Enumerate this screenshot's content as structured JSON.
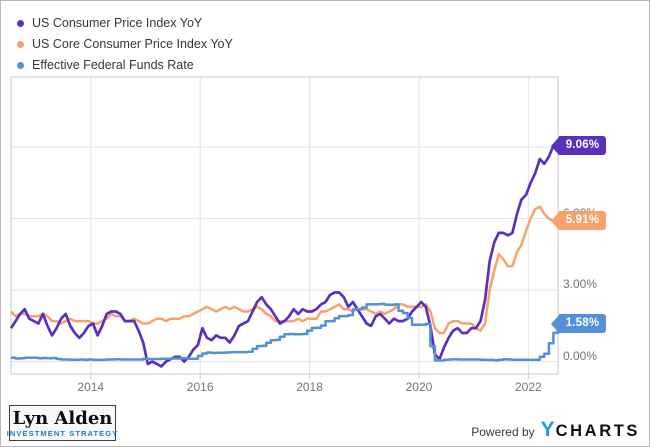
{
  "colors": {
    "cpi": "#5b30bd",
    "core": "#f7a16b",
    "effr": "#5490d8",
    "grid": "#e3e3e3",
    "axis_border": "#c9c9c9",
    "tick_text": "#757575",
    "legend_text": "#383838",
    "logo_accent": "#1b7ec6",
    "brand_accent": "#1e9be9"
  },
  "chart_data": {
    "type": "line",
    "x_unit": "monthly",
    "x_start": "2012-07",
    "x_end": "2022-07",
    "x_ticks": [
      2014,
      2016,
      2018,
      2020,
      2022
    ],
    "x_tick_labels": [
      "2014",
      "2016",
      "2018",
      "2020",
      "2022"
    ],
    "y_tick_labels": [
      "0.00%",
      "3.00%",
      "6.00%",
      "9.00%"
    ],
    "y_tick_values": [
      0,
      3,
      6,
      9
    ],
    "ylim": [
      -0.52,
      11.94
    ],
    "grid": true,
    "legend_position": "top-left",
    "series": [
      {
        "name": "US Consumer Price Index YoY",
        "color": "#5b30bd",
        "end_label": "9.06%",
        "end_value": 9.06,
        "step": false,
        "values": [
          1.4,
          1.7,
          2.0,
          2.2,
          1.8,
          1.7,
          1.6,
          2.0,
          1.5,
          1.1,
          1.4,
          1.8,
          2.0,
          1.5,
          1.2,
          1.0,
          1.2,
          1.5,
          1.6,
          1.1,
          1.5,
          2.0,
          2.1,
          2.1,
          2.0,
          1.7,
          1.7,
          1.7,
          1.3,
          0.8,
          -0.1,
          0.0,
          -0.1,
          -0.2,
          0.0,
          0.1,
          0.2,
          0.2,
          0.0,
          0.2,
          0.5,
          0.7,
          1.4,
          1.0,
          0.9,
          1.1,
          1.0,
          1.0,
          0.8,
          1.1,
          1.5,
          1.6,
          1.7,
          2.1,
          2.5,
          2.7,
          2.4,
          2.2,
          1.9,
          1.6,
          1.7,
          1.9,
          2.2,
          2.0,
          2.2,
          2.1,
          2.1,
          2.2,
          2.4,
          2.5,
          2.8,
          2.9,
          2.9,
          2.7,
          2.3,
          2.5,
          2.2,
          1.9,
          1.6,
          1.5,
          1.9,
          2.0,
          1.8,
          1.6,
          1.8,
          1.7,
          1.7,
          1.8,
          2.1,
          2.3,
          2.5,
          2.3,
          1.5,
          0.3,
          0.1,
          0.6,
          1.0,
          1.3,
          1.4,
          1.2,
          1.2,
          1.4,
          1.4,
          1.7,
          2.6,
          4.2,
          5.0,
          5.4,
          5.4,
          5.3,
          5.4,
          6.2,
          6.8,
          7.0,
          7.5,
          7.9,
          8.5,
          8.3,
          8.6,
          9.06
        ]
      },
      {
        "name": "US Core Consumer Price Index YoY",
        "color": "#f7a16b",
        "end_label": "5.91%",
        "end_value": 5.91,
        "step": false,
        "values": [
          2.1,
          1.9,
          2.0,
          2.0,
          1.9,
          1.9,
          1.9,
          2.0,
          1.9,
          1.7,
          1.7,
          1.6,
          1.7,
          1.8,
          1.7,
          1.7,
          1.7,
          1.7,
          1.6,
          1.6,
          1.7,
          1.8,
          2.0,
          1.9,
          1.9,
          1.7,
          1.7,
          1.8,
          1.7,
          1.6,
          1.6,
          1.7,
          1.8,
          1.8,
          1.7,
          1.8,
          1.8,
          1.8,
          1.9,
          1.9,
          2.0,
          2.1,
          2.2,
          2.3,
          2.2,
          2.1,
          2.2,
          2.3,
          2.2,
          2.3,
          2.2,
          2.1,
          2.1,
          2.2,
          2.3,
          2.2,
          2.0,
          1.9,
          1.7,
          1.7,
          1.7,
          1.7,
          1.7,
          1.8,
          1.7,
          1.8,
          1.8,
          1.8,
          2.1,
          2.1,
          2.2,
          2.3,
          2.4,
          2.2,
          2.2,
          2.1,
          2.2,
          2.2,
          2.2,
          2.1,
          2.0,
          2.1,
          2.0,
          2.1,
          2.2,
          2.4,
          2.4,
          2.3,
          2.3,
          2.3,
          2.3,
          2.4,
          2.1,
          1.4,
          1.2,
          1.2,
          1.6,
          1.7,
          1.7,
          1.6,
          1.6,
          1.6,
          1.4,
          1.3,
          1.6,
          3.0,
          3.8,
          4.5,
          4.3,
          4.0,
          4.0,
          4.6,
          4.9,
          5.5,
          6.0,
          6.4,
          6.5,
          6.2,
          6.0,
          5.91
        ]
      },
      {
        "name": "Effective Federal Funds Rate",
        "color": "#5490d8",
        "end_label": "1.58%",
        "end_value": 1.58,
        "step": true,
        "values": [
          0.16,
          0.13,
          0.14,
          0.16,
          0.16,
          0.16,
          0.14,
          0.15,
          0.14,
          0.15,
          0.11,
          0.09,
          0.09,
          0.08,
          0.08,
          0.09,
          0.08,
          0.09,
          0.07,
          0.07,
          0.08,
          0.09,
          0.09,
          0.1,
          0.09,
          0.09,
          0.09,
          0.09,
          0.09,
          0.12,
          0.11,
          0.11,
          0.11,
          0.12,
          0.12,
          0.13,
          0.13,
          0.14,
          0.14,
          0.12,
          0.12,
          0.24,
          0.34,
          0.38,
          0.36,
          0.37,
          0.37,
          0.38,
          0.39,
          0.4,
          0.4,
          0.4,
          0.41,
          0.54,
          0.65,
          0.66,
          0.79,
          0.9,
          0.91,
          1.04,
          1.15,
          1.16,
          1.15,
          1.15,
          1.16,
          1.3,
          1.41,
          1.42,
          1.51,
          1.69,
          1.7,
          1.82,
          1.91,
          1.91,
          1.95,
          2.19,
          2.2,
          2.27,
          2.4,
          2.4,
          2.41,
          2.42,
          2.39,
          2.38,
          2.4,
          2.13,
          2.04,
          1.83,
          1.55,
          1.55,
          1.55,
          1.58,
          0.65,
          0.05,
          0.05,
          0.08,
          0.09,
          0.1,
          0.09,
          0.09,
          0.09,
          0.09,
          0.09,
          0.08,
          0.07,
          0.07,
          0.06,
          0.08,
          0.1,
          0.09,
          0.08,
          0.08,
          0.08,
          0.08,
          0.08,
          0.08,
          0.2,
          0.33,
          0.77,
          1.21,
          1.58
        ]
      }
    ]
  },
  "footer": {
    "logo": {
      "line1": "Lyn Alden",
      "line2": "INVESTMENT STRATEGY"
    },
    "powered_by": "Powered by",
    "brand": {
      "prefix": "Y",
      "rest": "CHARTS"
    }
  }
}
